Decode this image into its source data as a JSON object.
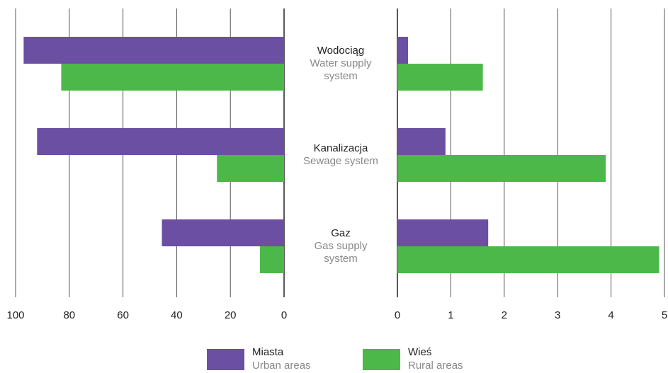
{
  "chart_data": {
    "type": "bar",
    "orientation": "horizontal",
    "categories": [
      "Wodociąg",
      "Kanalizacja",
      "Gaz"
    ],
    "category_subtitles": [
      [
        "Water supply",
        "system"
      ],
      [
        "Sewage system"
      ],
      [
        "Gas supply",
        "system"
      ]
    ],
    "series": [
      {
        "name": "Miasta",
        "subtitle": "Urban areas",
        "color": "#6a4fa3"
      },
      {
        "name": "Wieś",
        "subtitle": "Rural areas",
        "color": "#4cb84a"
      }
    ],
    "panels": [
      {
        "xlim": [
          100,
          0
        ],
        "xticks": [
          100,
          80,
          60,
          40,
          20,
          0
        ],
        "series_values": [
          [
            97,
            92,
            45.5
          ],
          [
            83,
            25,
            9
          ]
        ]
      },
      {
        "xlim": [
          0,
          5
        ],
        "xticks": [
          0,
          1,
          2,
          3,
          4,
          5
        ],
        "series_values": [
          [
            0.2,
            0.9,
            1.7
          ],
          [
            1.6,
            3.9,
            4.9
          ]
        ]
      }
    ],
    "grid": true
  }
}
